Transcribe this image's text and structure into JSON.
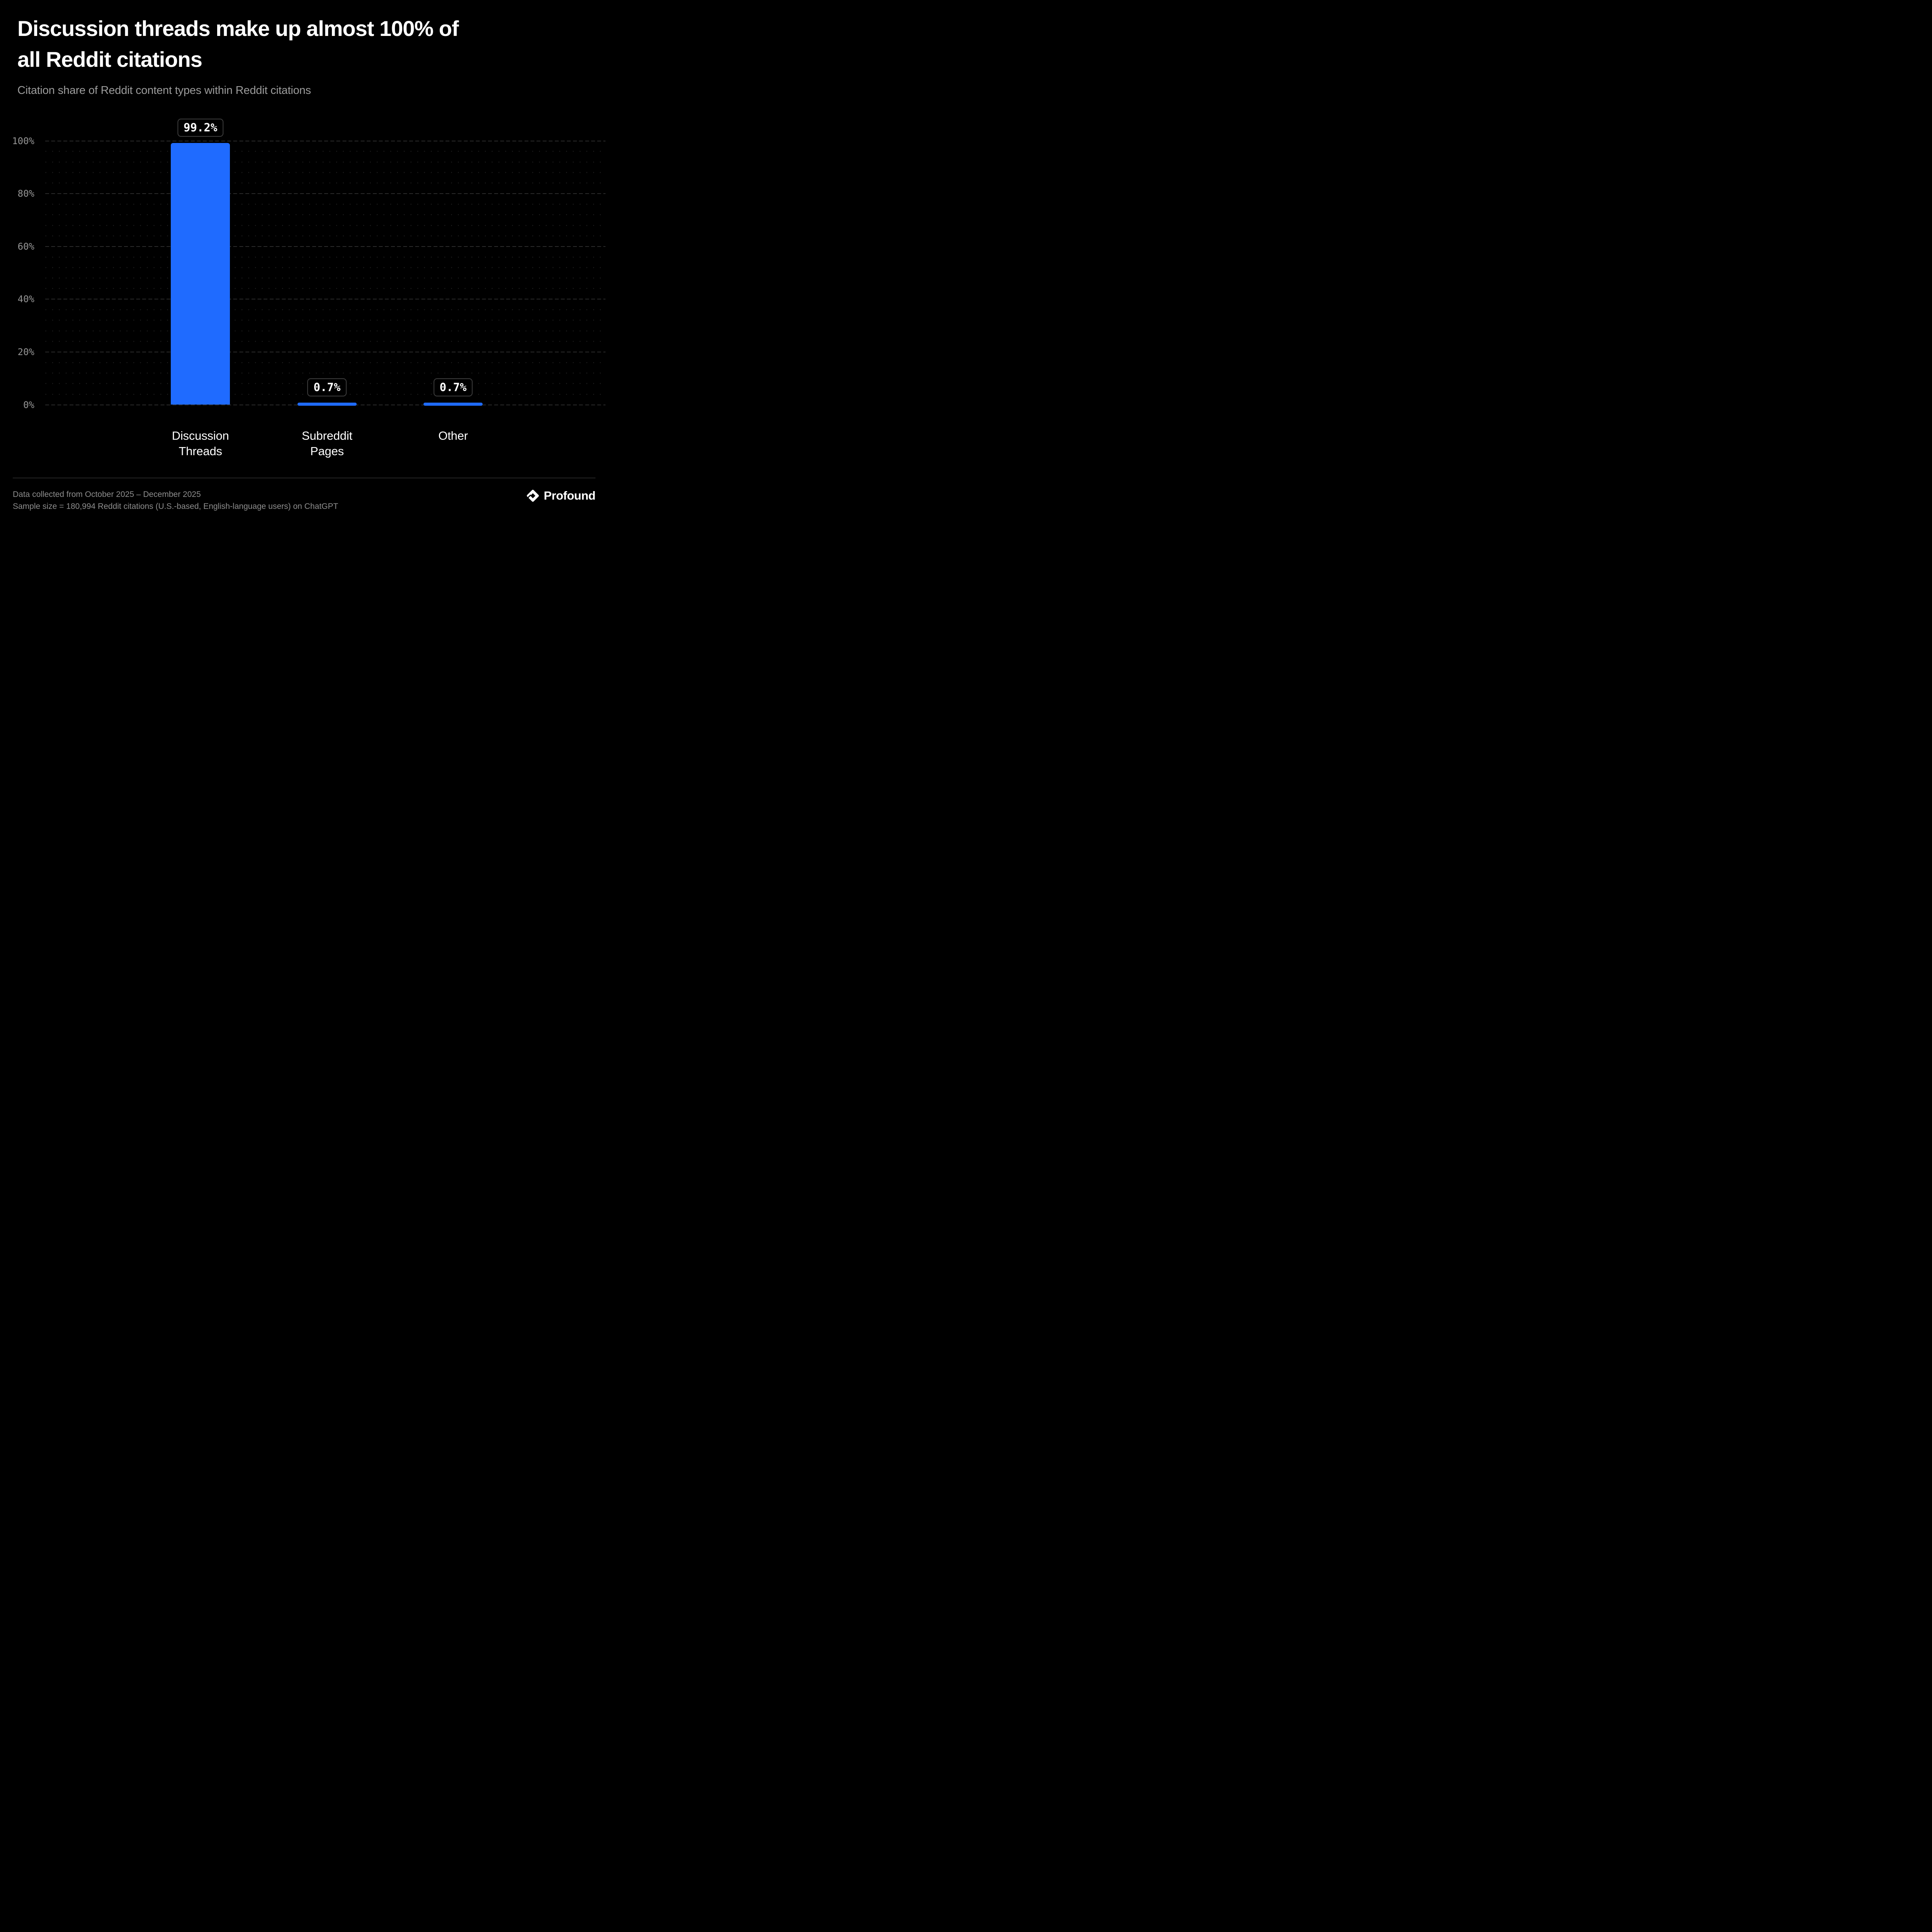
{
  "page": {
    "background": "#000000"
  },
  "header": {
    "title_lines": [
      "Discussion threads make up almost 100% of",
      "all Reddit citations"
    ],
    "subtitle": "Citation share of Reddit content types within Reddit citations"
  },
  "chart_data": {
    "type": "bar",
    "title": "Discussion threads make up almost 100% of all Reddit citations",
    "subtitle": "Citation share of Reddit content types within Reddit citations",
    "categories": [
      "Discussion Threads",
      "Subreddit Pages",
      "Other"
    ],
    "category_label_lines": [
      [
        "Discussion",
        "Threads"
      ],
      [
        "Subreddit",
        "Pages"
      ],
      [
        "Other"
      ]
    ],
    "values": [
      99.2,
      0.7,
      0.7
    ],
    "value_labels": [
      "99.2%",
      "0.7%",
      "0.7%"
    ],
    "xlabel": "",
    "ylabel": "",
    "ylim": [
      0,
      100
    ],
    "y_ticks": [
      {
        "value": 0,
        "label": "0%"
      },
      {
        "value": 20,
        "label": "20%"
      },
      {
        "value": 40,
        "label": "40%"
      },
      {
        "value": 60,
        "label": "60%"
      },
      {
        "value": 80,
        "label": "80%"
      },
      {
        "value": 100,
        "label": "100%"
      }
    ],
    "grid": {
      "major": "dashed horizontal every 20%",
      "minor": "dotted horizontal every 4%"
    },
    "legend": "none",
    "colors": {
      "bar": "#1F6BFF",
      "value_badge_text": "#FFFFFF",
      "value_badge_border": "#3D3D3D",
      "value_badge_background": "#000000",
      "axis_text": "#969696",
      "major_grid": "#2B2B2B",
      "minor_grid": "#202020"
    }
  },
  "footer": {
    "note_line1": "Data collected from October 2025 – December 2025",
    "note_line2": "Sample size = 180,994 Reddit citations (U.S.-based, English-language users) on ChatGPT",
    "brand": "Profound"
  }
}
